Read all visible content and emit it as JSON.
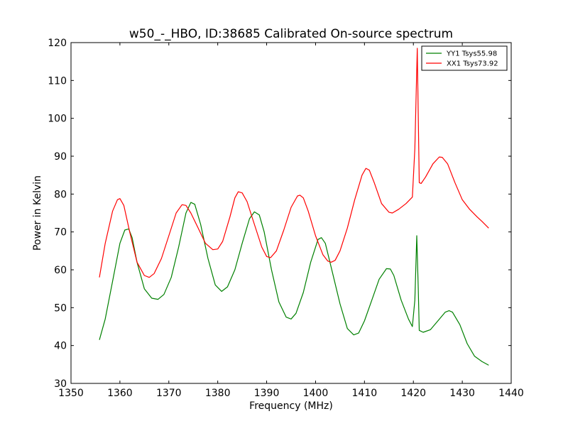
{
  "chart_data": {
    "type": "line",
    "title": "w50_-_HBO, ID:38685 Calibrated On-source spectrum",
    "xlabel": "Frequency (MHz)",
    "ylabel": "Power in Kelvin",
    "xlim": [
      1350,
      1440
    ],
    "ylim": [
      30,
      120
    ],
    "xticks": [
      1350,
      1360,
      1370,
      1380,
      1390,
      1400,
      1410,
      1420,
      1430,
      1440
    ],
    "yticks": [
      30,
      40,
      50,
      60,
      70,
      80,
      90,
      100,
      110,
      120
    ],
    "grid": false,
    "legend_position": "top-right",
    "series": [
      {
        "name": "YY1 Tsys55.98",
        "color": "#008000",
        "points": [
          [
            1355.8,
            41.5
          ],
          [
            1357.0,
            47
          ],
          [
            1358.5,
            57
          ],
          [
            1360.0,
            67
          ],
          [
            1361.0,
            70.5
          ],
          [
            1361.8,
            70.8
          ],
          [
            1362.5,
            68.5
          ],
          [
            1363.5,
            62
          ],
          [
            1365.0,
            55
          ],
          [
            1366.5,
            52.5
          ],
          [
            1367.8,
            52.2
          ],
          [
            1369.0,
            53.5
          ],
          [
            1370.5,
            58
          ],
          [
            1372.0,
            66
          ],
          [
            1373.5,
            75
          ],
          [
            1374.5,
            77.8
          ],
          [
            1375.3,
            77.3
          ],
          [
            1376.5,
            72
          ],
          [
            1378.0,
            63
          ],
          [
            1379.5,
            56
          ],
          [
            1380.8,
            54.3
          ],
          [
            1382.0,
            55.5
          ],
          [
            1383.5,
            60
          ],
          [
            1385.0,
            67
          ],
          [
            1386.5,
            73.5
          ],
          [
            1387.5,
            75.3
          ],
          [
            1388.5,
            74.5
          ],
          [
            1389.5,
            70
          ],
          [
            1391.0,
            60
          ],
          [
            1392.5,
            51.5
          ],
          [
            1394.0,
            47.5
          ],
          [
            1395.0,
            47
          ],
          [
            1396.0,
            48.5
          ],
          [
            1397.5,
            54
          ],
          [
            1399.0,
            62
          ],
          [
            1400.5,
            68
          ],
          [
            1401.2,
            68.5
          ],
          [
            1402.0,
            67
          ],
          [
            1403.5,
            59
          ],
          [
            1405.0,
            51
          ],
          [
            1406.5,
            44.5
          ],
          [
            1407.8,
            42.8
          ],
          [
            1408.8,
            43.3
          ],
          [
            1410.0,
            46.5
          ],
          [
            1411.5,
            52
          ],
          [
            1413.0,
            57.5
          ],
          [
            1414.5,
            60.3
          ],
          [
            1415.3,
            60.2
          ],
          [
            1416.0,
            58.5
          ],
          [
            1417.5,
            52
          ],
          [
            1419.0,
            47
          ],
          [
            1419.8,
            45
          ],
          [
            1420.3,
            52
          ],
          [
            1420.7,
            69
          ],
          [
            1421.0,
            55
          ],
          [
            1421.2,
            44
          ],
          [
            1422.0,
            43.5
          ],
          [
            1423.5,
            44.2
          ],
          [
            1425.0,
            46.5
          ],
          [
            1426.5,
            48.8
          ],
          [
            1427.3,
            49.2
          ],
          [
            1428.0,
            48.8
          ],
          [
            1429.5,
            45.5
          ],
          [
            1431.0,
            40.5
          ],
          [
            1432.5,
            37.2
          ],
          [
            1434.0,
            35.8
          ],
          [
            1435.4,
            34.8
          ]
        ]
      },
      {
        "name": "XX1 Tsys73.92",
        "color": "#ff0000",
        "points": [
          [
            1355.8,
            58
          ],
          [
            1357.0,
            67
          ],
          [
            1358.5,
            75.5
          ],
          [
            1359.5,
            78.5
          ],
          [
            1360.0,
            78.8
          ],
          [
            1360.8,
            77
          ],
          [
            1362.0,
            70
          ],
          [
            1363.5,
            62
          ],
          [
            1365.0,
            58.5
          ],
          [
            1366.0,
            58
          ],
          [
            1367.0,
            59
          ],
          [
            1368.5,
            63
          ],
          [
            1370.0,
            69
          ],
          [
            1371.5,
            75
          ],
          [
            1372.7,
            77.2
          ],
          [
            1373.5,
            77
          ],
          [
            1374.5,
            75
          ],
          [
            1376.0,
            71
          ],
          [
            1377.5,
            67
          ],
          [
            1379.0,
            65.3
          ],
          [
            1380.0,
            65.5
          ],
          [
            1381.0,
            67.5
          ],
          [
            1382.5,
            74
          ],
          [
            1383.5,
            79
          ],
          [
            1384.2,
            80.6
          ],
          [
            1385.0,
            80.3
          ],
          [
            1386.0,
            78
          ],
          [
            1387.5,
            72
          ],
          [
            1389.0,
            66
          ],
          [
            1390.0,
            63.5
          ],
          [
            1390.8,
            63.2
          ],
          [
            1392.0,
            65
          ],
          [
            1393.5,
            70.5
          ],
          [
            1395.0,
            76.5
          ],
          [
            1396.3,
            79.5
          ],
          [
            1396.8,
            79.7
          ],
          [
            1397.5,
            79
          ],
          [
            1398.5,
            75.5
          ],
          [
            1400.0,
            69
          ],
          [
            1401.5,
            64
          ],
          [
            1402.5,
            62.3
          ],
          [
            1403.2,
            62
          ],
          [
            1404.0,
            62.5
          ],
          [
            1405.0,
            65
          ],
          [
            1406.5,
            71
          ],
          [
            1408.0,
            78.5
          ],
          [
            1409.5,
            85
          ],
          [
            1410.3,
            86.8
          ],
          [
            1411.0,
            86.3
          ],
          [
            1412.0,
            83
          ],
          [
            1413.5,
            77.5
          ],
          [
            1415.0,
            75.2
          ],
          [
            1415.7,
            75
          ],
          [
            1417.0,
            76
          ],
          [
            1418.5,
            77.5
          ],
          [
            1419.8,
            79.2
          ],
          [
            1420.3,
            92
          ],
          [
            1420.8,
            118.5
          ],
          [
            1421.2,
            83
          ],
          [
            1421.6,
            82.8
          ],
          [
            1422.5,
            84.5
          ],
          [
            1424.0,
            88
          ],
          [
            1425.3,
            89.8
          ],
          [
            1425.9,
            89.7
          ],
          [
            1427.0,
            88
          ],
          [
            1428.5,
            83
          ],
          [
            1430.0,
            78.5
          ],
          [
            1431.5,
            76
          ],
          [
            1433.0,
            74
          ],
          [
            1434.0,
            72.8
          ],
          [
            1435.4,
            71
          ]
        ]
      }
    ]
  }
}
